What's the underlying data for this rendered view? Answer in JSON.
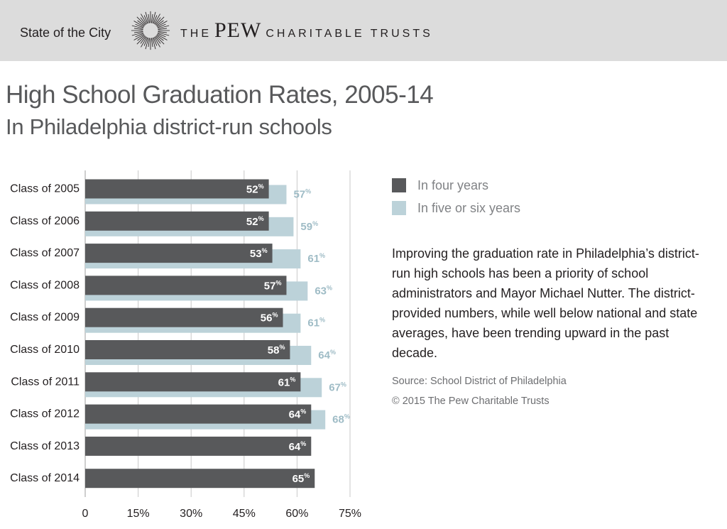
{
  "header": {
    "series_name": "State of the City",
    "brand_the": "THE",
    "brand_pew": "PEW",
    "brand_rest": "CHARITABLE TRUSTS"
  },
  "colors": {
    "header_bg": "#dcdcdc",
    "four_years": "#58595b",
    "five_six_years": "#bcd2d9",
    "five_six_label": "#9fbcc6",
    "gridline": "#c8c8c8"
  },
  "chart_data": {
    "type": "bar",
    "orientation": "horizontal",
    "title": "High School Graduation Rates, 2005-14",
    "subtitle": "In Philadelphia district-run schools",
    "categories": [
      "Class of 2005",
      "Class of 2006",
      "Class of 2007",
      "Class of 2008",
      "Class of 2009",
      "Class of 2010",
      "Class of 2011",
      "Class of 2012",
      "Class of 2013",
      "Class of 2014"
    ],
    "series": [
      {
        "name": "In four years",
        "values": [
          52,
          52,
          53,
          57,
          56,
          58,
          61,
          64,
          64,
          65
        ]
      },
      {
        "name": "In five or six years",
        "values": [
          57,
          59,
          61,
          63,
          61,
          64,
          67,
          68,
          null,
          null
        ]
      }
    ],
    "x_ticks": [
      "0",
      "15%",
      "30%",
      "45%",
      "60%",
      "75%"
    ],
    "x_tick_values": [
      0,
      15,
      30,
      45,
      60,
      75
    ],
    "xlim": [
      0,
      75
    ],
    "value_suffix": "%",
    "grid": true,
    "legend": "right"
  },
  "legend": {
    "items": [
      {
        "label": "In four years"
      },
      {
        "label": "In five or six years"
      }
    ]
  },
  "description": "Improving the graduation rate in Philadelphia’s district-run high schools has been a priority of school administrators and Mayor Michael Nutter. The district-provided numbers, while well below national and state averages, have been trending upward in the past decade.",
  "source": "Source: School District of Philadelphia",
  "copyright": "© 2015 The Pew Charitable Trusts"
}
